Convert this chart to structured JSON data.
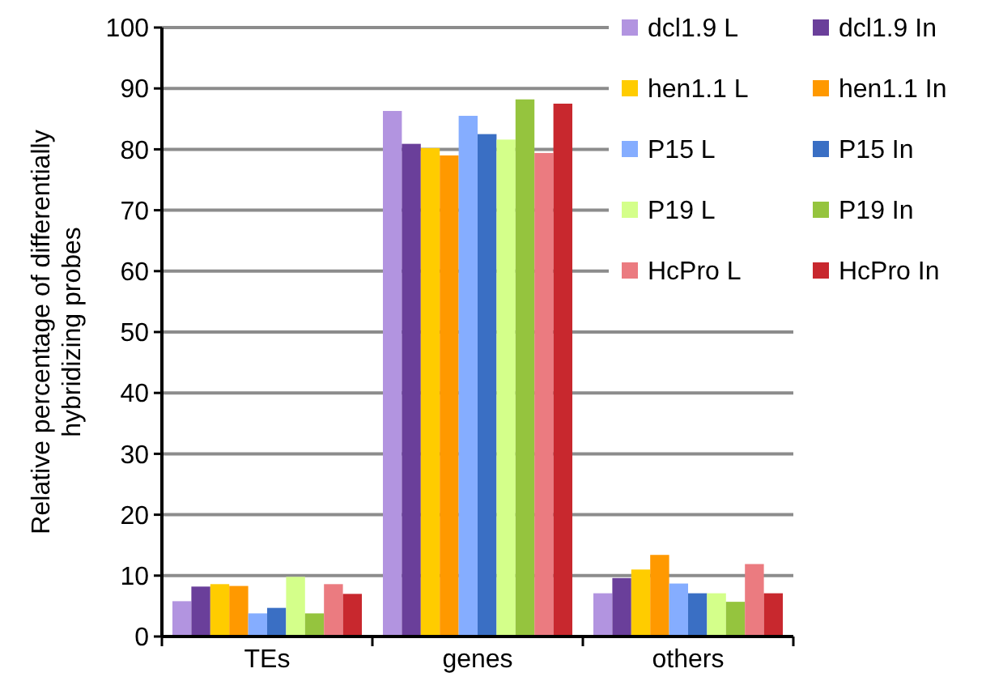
{
  "chart_data": {
    "type": "bar",
    "ylabel": "Relative percentage of differentially hybridizing probes",
    "categories": [
      "TEs",
      "genes",
      "others"
    ],
    "ylim": [
      0,
      100
    ],
    "yticks": [
      0,
      10,
      20,
      30,
      40,
      50,
      60,
      70,
      80,
      90,
      100
    ],
    "grid": "y",
    "legend": "top right",
    "series": [
      {
        "name": "dcl1.9 L",
        "color": "#b294e0",
        "values": [
          5.8,
          86.3,
          7.1
        ]
      },
      {
        "name": "dcl1.9 In",
        "color": "#6a3f9a",
        "values": [
          8.2,
          80.9,
          9.6
        ]
      },
      {
        "name": "hen1.1 L",
        "color": "#ffcc00",
        "values": [
          8.6,
          80.2,
          11.0
        ]
      },
      {
        "name": "hen1.1 In",
        "color": "#ff9900",
        "values": [
          8.3,
          79.0,
          13.4
        ]
      },
      {
        "name": "P15 L",
        "color": "#85adff",
        "values": [
          3.8,
          85.5,
          8.7
        ]
      },
      {
        "name": "P15 In",
        "color": "#3a6fc4",
        "values": [
          4.7,
          82.5,
          7.1
        ]
      },
      {
        "name": "P19 L",
        "color": "#d4ff8a",
        "values": [
          9.8,
          81.6,
          7.1
        ]
      },
      {
        "name": "P19 In",
        "color": "#95c43e",
        "values": [
          3.8,
          88.2,
          5.7
        ]
      },
      {
        "name": "HcPro L",
        "color": "#eb7b80",
        "values": [
          8.6,
          79.4,
          11.9
        ]
      },
      {
        "name": "HcPro In",
        "color": "#c8282e",
        "values": [
          7.0,
          87.5,
          7.1
        ]
      }
    ]
  }
}
